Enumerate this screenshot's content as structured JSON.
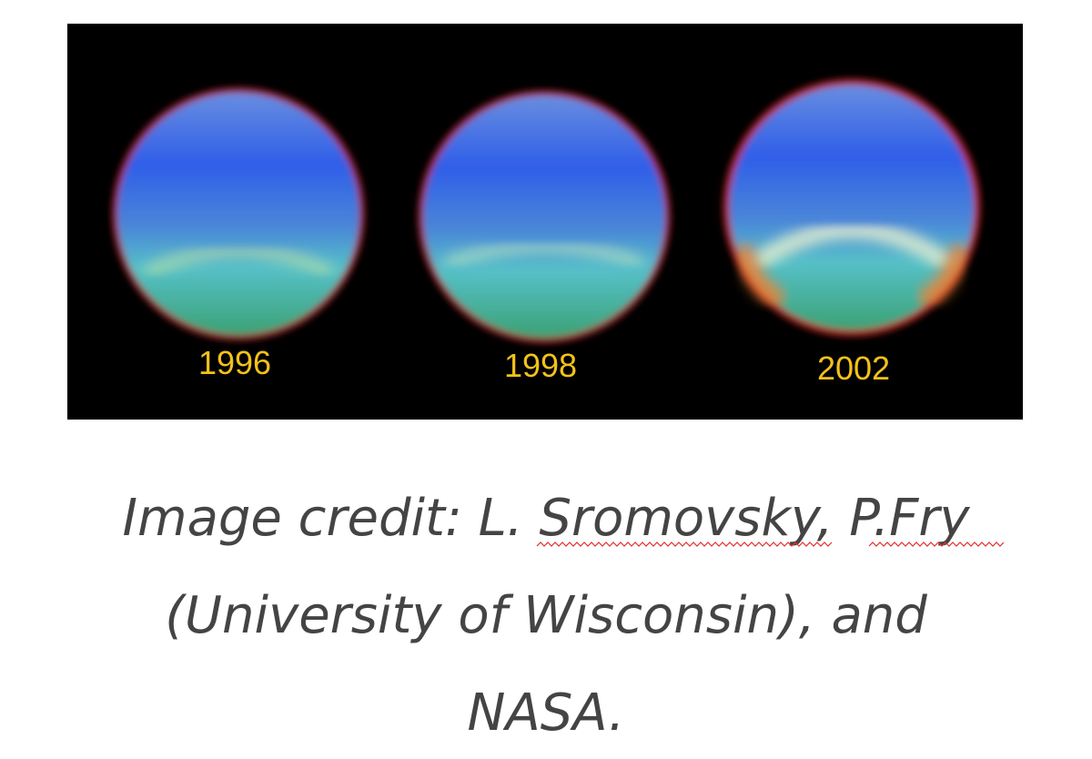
{
  "image": {
    "labels": [
      "1996",
      "1998",
      "2002"
    ]
  },
  "caption": {
    "lines": [
      "Image credit: L. Sromovsky, P.Fry",
      "(University of Wisconsin), and",
      "NASA."
    ]
  }
}
